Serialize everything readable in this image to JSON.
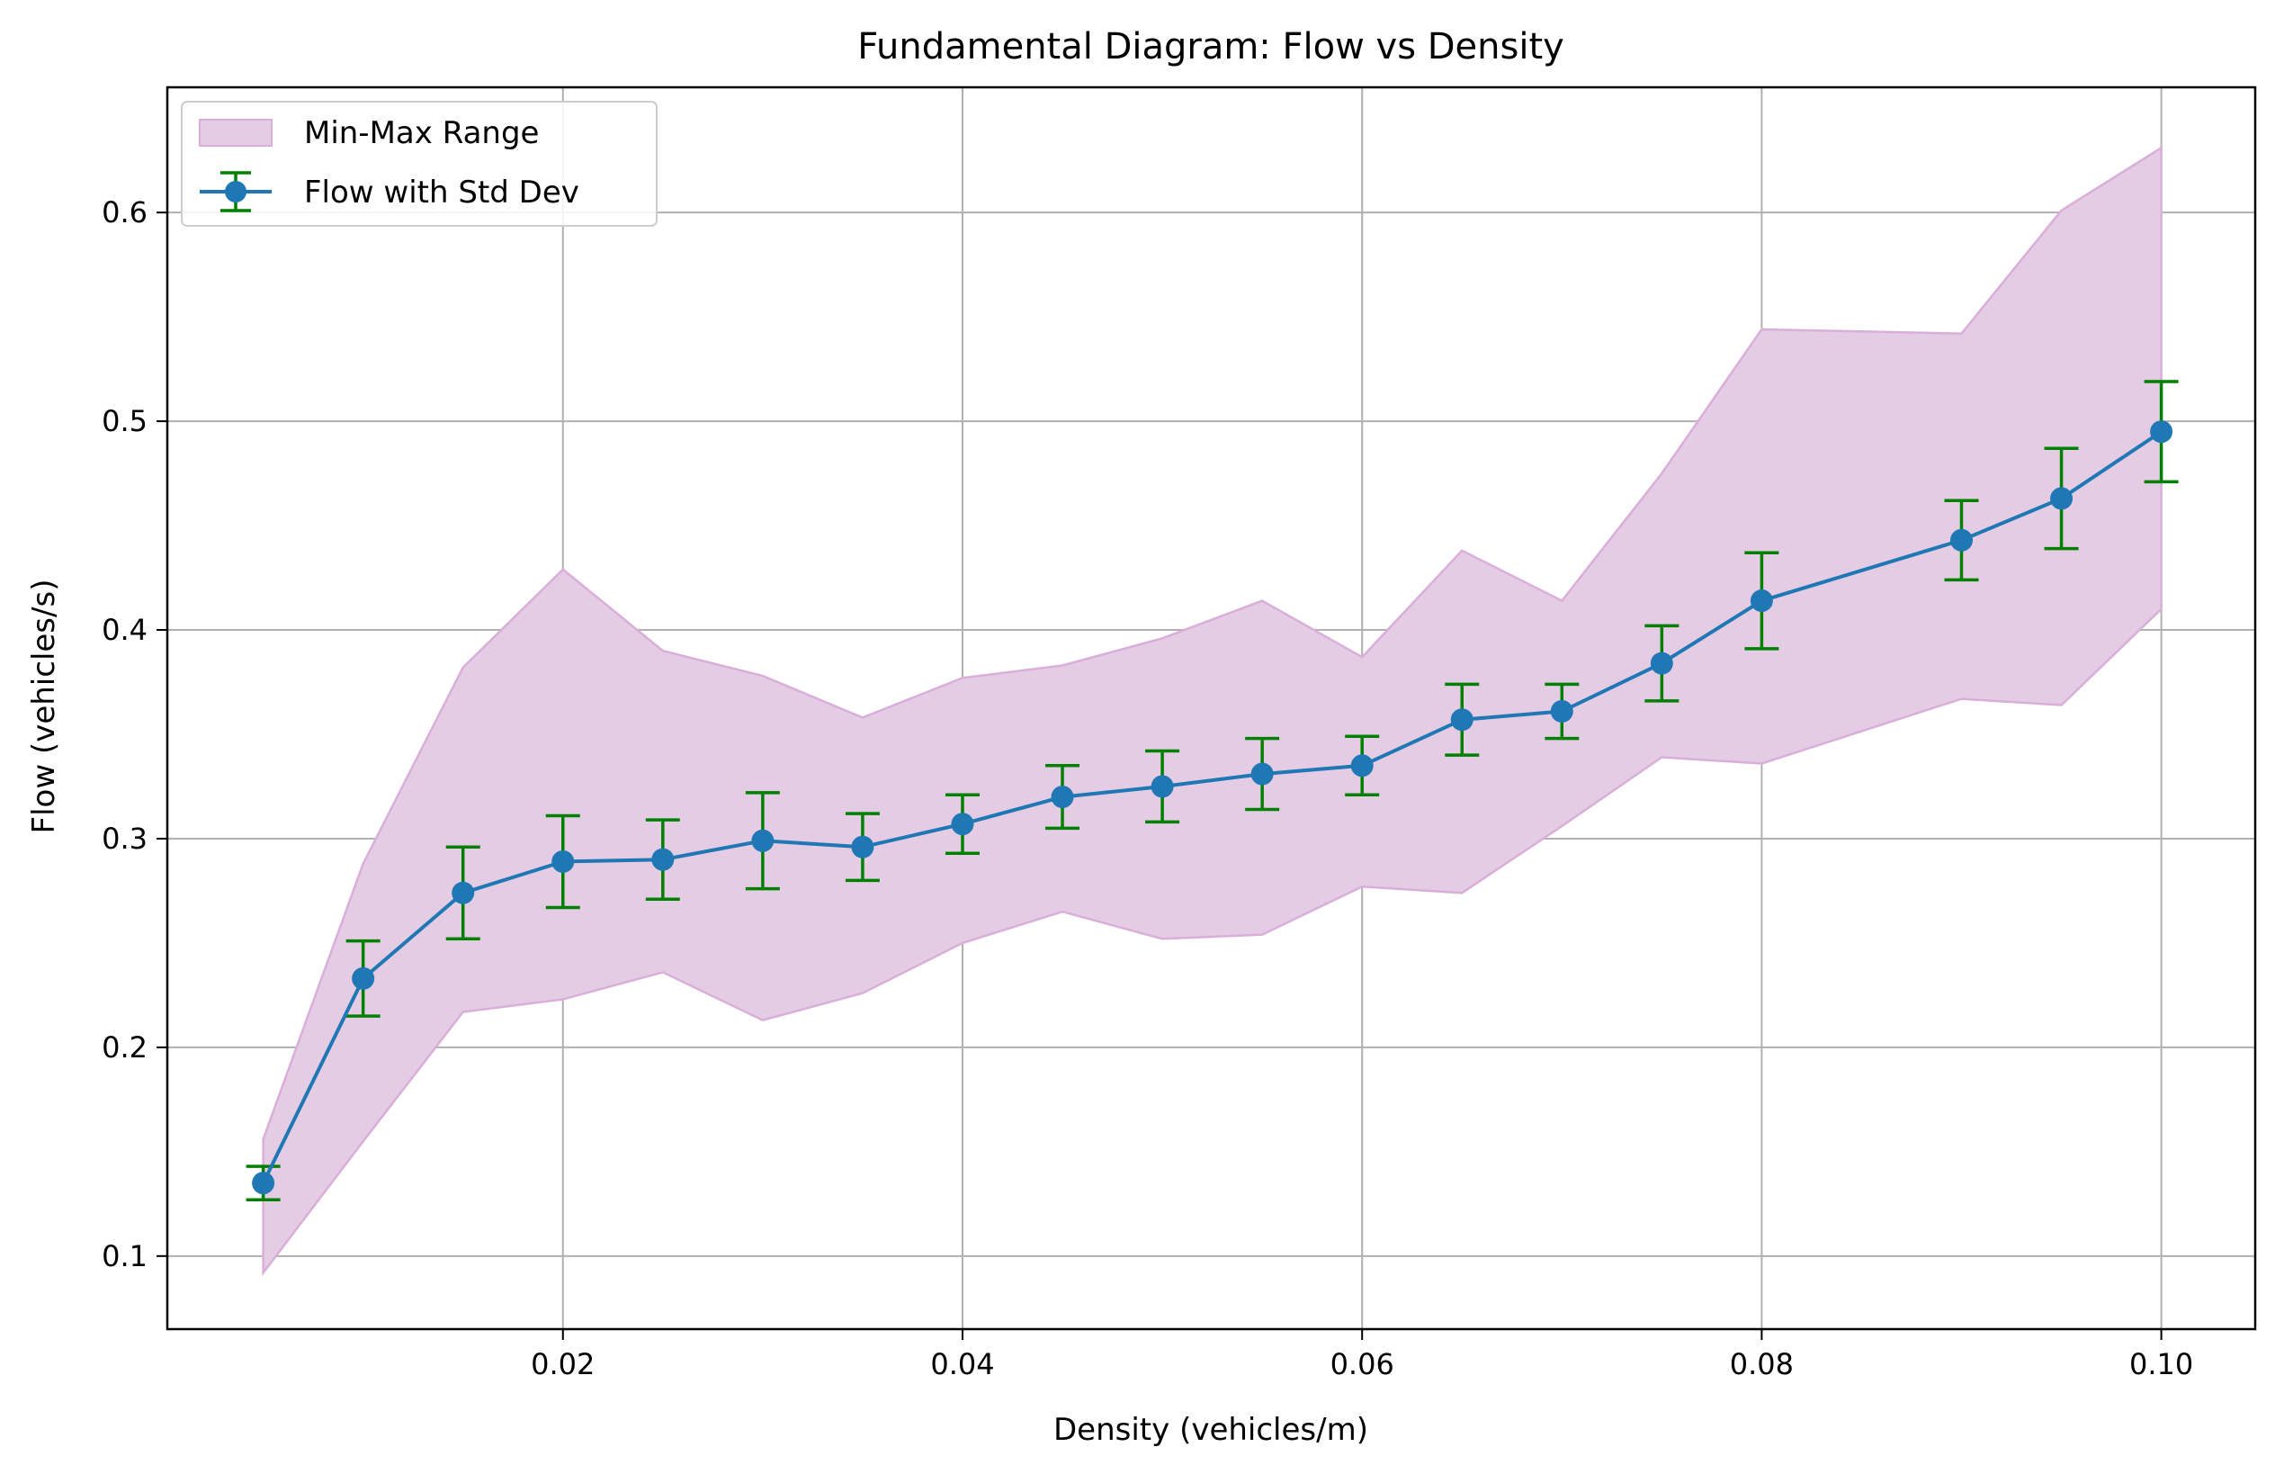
{
  "chart_data": {
    "type": "line",
    "title": "Fundamental Diagram: Flow vs Density",
    "xlabel": "Density (vehicles/m)",
    "ylabel": "Flow (vehicles/s)",
    "xlim": [
      0.0002,
      0.1047
    ],
    "ylim": [
      0.065,
      0.66
    ],
    "xticks": [
      0.02,
      0.04,
      0.06,
      0.08,
      0.1
    ],
    "xtick_labels": [
      "0.02",
      "0.04",
      "0.06",
      "0.08",
      "0.10"
    ],
    "yticks": [
      0.1,
      0.2,
      0.3,
      0.4,
      0.5,
      0.6
    ],
    "ytick_labels": [
      "0.1",
      "0.2",
      "0.3",
      "0.4",
      "0.5",
      "0.6"
    ],
    "grid": true,
    "legend_position": "top-left",
    "legend": [
      "Min-Max Range",
      "Flow with Std Dev"
    ],
    "x": [
      0.005,
      0.01,
      0.015,
      0.02,
      0.025,
      0.03,
      0.035,
      0.04,
      0.045,
      0.05,
      0.055,
      0.06,
      0.065,
      0.07,
      0.075,
      0.08,
      0.09,
      0.095,
      0.1
    ],
    "series": [
      {
        "name": "Flow with Std Dev",
        "kind": "line-errorbar",
        "values": [
          0.135,
          0.233,
          0.274,
          0.289,
          0.29,
          0.299,
          0.296,
          0.307,
          0.32,
          0.325,
          0.331,
          0.335,
          0.357,
          0.361,
          0.384,
          0.414,
          0.443,
          0.463,
          0.495
        ],
        "std": [
          0.008,
          0.018,
          0.022,
          0.022,
          0.019,
          0.023,
          0.016,
          0.014,
          0.015,
          0.017,
          0.017,
          0.014,
          0.017,
          0.013,
          0.018,
          0.023,
          0.019,
          0.024,
          0.024
        ],
        "color": "#1f77b4",
        "errorbar_color": "#008000"
      },
      {
        "name": "Min-Max Range",
        "kind": "band",
        "min": [
          0.092,
          0.155,
          0.217,
          0.223,
          0.236,
          0.213,
          0.226,
          0.25,
          0.265,
          0.252,
          0.254,
          0.277,
          0.274,
          0.306,
          0.339,
          0.336,
          0.367,
          0.364,
          0.41
        ],
        "max": [
          0.156,
          0.288,
          0.382,
          0.429,
          0.39,
          0.378,
          0.358,
          0.377,
          0.383,
          0.396,
          0.414,
          0.387,
          0.438,
          0.414,
          0.475,
          0.544,
          0.542,
          0.601,
          0.631
        ],
        "fill_color": "#e5cce5",
        "edge_color": "#d9aed9"
      }
    ]
  }
}
